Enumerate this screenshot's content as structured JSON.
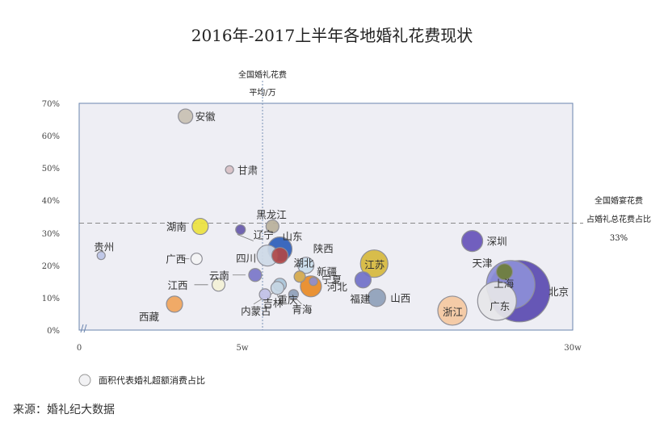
{
  "chart_data": {
    "type": "scatter",
    "title": "2016年-2017上半年各地婚礼花费现状",
    "source": "来源：婚礼纪大数据",
    "legend": {
      "text": "面积代表婚礼超额消费占比",
      "placement": "bottom-left"
    },
    "x_ticks": [
      "0",
      "5w",
      "30w"
    ],
    "y_ticks": [
      "0%",
      "10%",
      "20%",
      "30%",
      "40%",
      "50%",
      "60%",
      "70%"
    ],
    "ylim": [
      0,
      70
    ],
    "avg_x_label": [
      "全国婚礼花费",
      "平均/万"
    ],
    "avg_y_label": [
      "全国婚宴花费",
      "占婚礼总花费占比",
      "33%"
    ],
    "avg_y_value": 33,
    "points": [
      {
        "name": "安徽",
        "x": 2.9,
        "y": 66,
        "size": 9,
        "color": "#c8c0b2"
      },
      {
        "name": "甘肃",
        "x": 4.1,
        "y": 49.5,
        "size": 5,
        "color": "#d8c0c4"
      },
      {
        "name": "黑龙江",
        "x": 5.8,
        "y": 32,
        "size": 8,
        "color": "#b8b09a"
      },
      {
        "name": "湖南",
        "x": 3.3,
        "y": 32,
        "size": 10,
        "color": "#ece23e"
      },
      {
        "name": "辽宁",
        "x": 4.4,
        "y": 31,
        "size": 6,
        "color": "#6658aa"
      },
      {
        "name": "山东",
        "x": 6.4,
        "y": 25,
        "size": 15,
        "color": "#2d5db8"
      },
      {
        "name": "湖北",
        "x": 6.4,
        "y": 23,
        "size": 10,
        "color": "#b04848"
      },
      {
        "name": "四川",
        "x": 5.4,
        "y": 23,
        "size": 13,
        "color": "#cdd9e6"
      },
      {
        "name": "贵州",
        "x": 0.6,
        "y": 23,
        "size": 5,
        "color": "#bcc4e6"
      },
      {
        "name": "广西",
        "x": 3.2,
        "y": 22,
        "size": 7,
        "color": "#f4f4f4"
      },
      {
        "name": "陕西",
        "x": 8.5,
        "y": 20,
        "size": 10,
        "color": "#c9dcea"
      },
      {
        "name": "云南",
        "x": 4.8,
        "y": 17,
        "size": 8,
        "color": "#7a76c8"
      },
      {
        "name": "新疆",
        "x": 8.0,
        "y": 16.5,
        "size": 7,
        "color": "#d4a84a"
      },
      {
        "name": "江西",
        "x": 3.8,
        "y": 14,
        "size": 8,
        "color": "#f3f1d6"
      },
      {
        "name": "重庆",
        "x": 6.4,
        "y": 14,
        "size": 8,
        "color": "#a8c4d8"
      },
      {
        "name": "宁夏",
        "x": 9.1,
        "y": 15,
        "size": 5,
        "color": "#8e8ed0"
      },
      {
        "name": "河北",
        "x": 8.9,
        "y": 13.5,
        "size": 13,
        "color": "#e88a24"
      },
      {
        "name": "吉林",
        "x": 6.2,
        "y": 13,
        "size": 8,
        "color": "#c6d6e4"
      },
      {
        "name": "青海",
        "x": 7.5,
        "y": 11,
        "size": 6,
        "color": "#8ea0b8"
      },
      {
        "name": "内蒙古",
        "x": 5.2,
        "y": 11,
        "size": 7,
        "color": "#c0c0e6"
      },
      {
        "name": "西藏",
        "x": 2.6,
        "y": 8,
        "size": 10,
        "color": "#f0a45a"
      },
      {
        "name": "江苏",
        "x": 14.0,
        "y": 20.5,
        "size": 17,
        "color": "#d6b83c"
      },
      {
        "name": "福建",
        "x": 13.1,
        "y": 15.5,
        "size": 10,
        "color": "#7070c8"
      },
      {
        "name": "山西",
        "x": 14.2,
        "y": 10,
        "size": 11,
        "color": "#8ea0b8"
      },
      {
        "name": "浙江",
        "x": 20.3,
        "y": 6,
        "size": 18,
        "color": "#f4c8a0"
      },
      {
        "name": "深圳",
        "x": 21.9,
        "y": 27.5,
        "size": 13,
        "color": "#6652b8"
      },
      {
        "name": "天津",
        "x": 24.5,
        "y": 18,
        "size": 10,
        "color": "#6e7e38"
      },
      {
        "name": "上海",
        "x": 25.0,
        "y": 14,
        "size": 30,
        "color": "#8c8ed8"
      },
      {
        "name": "北京",
        "x": 25.7,
        "y": 12,
        "size": 38,
        "color": "#5a4ab0"
      },
      {
        "name": "广东",
        "x": 23.9,
        "y": 9,
        "size": 24,
        "color": "#e6e6e8"
      }
    ]
  }
}
